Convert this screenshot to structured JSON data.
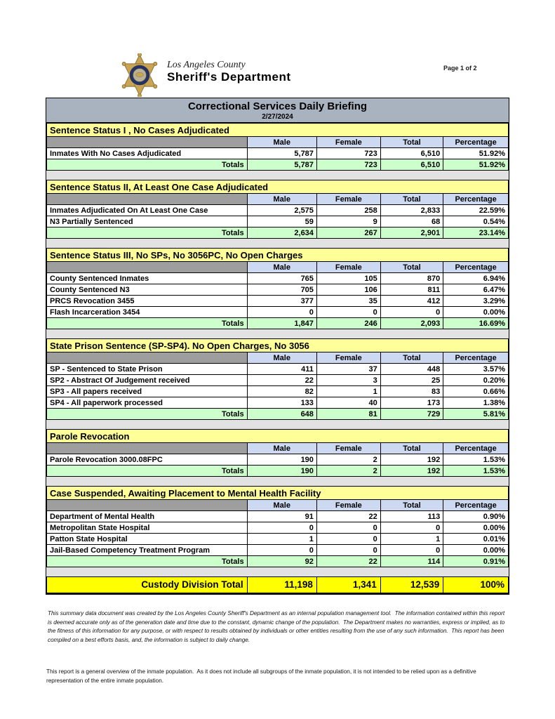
{
  "page": {
    "page_indicator": "Page 1 of 2"
  },
  "logo": {
    "county": "Los Angeles County",
    "department": "Sheriff's Department"
  },
  "report": {
    "title": "Correctional Services Daily Briefing",
    "date": "2/27/2024"
  },
  "columns": [
    "Male",
    "Female",
    "Total",
    "Percentage"
  ],
  "totals_label": "Totals",
  "sections": [
    {
      "title": "Sentence Status I , No Cases Adjudicated",
      "rows": [
        {
          "label": "Inmates With No Cases Adjudicated",
          "male": "5,787",
          "female": "723",
          "total": "6,510",
          "percentage": "51.92%"
        }
      ],
      "totals": {
        "male": "5,787",
        "female": "723",
        "total": "6,510",
        "percentage": "51.92%"
      }
    },
    {
      "title": "Sentence Status II, At Least One Case Adjudicated",
      "rows": [
        {
          "label": "Inmates Adjudicated On At Least One Case",
          "male": "2,575",
          "female": "258",
          "total": "2,833",
          "percentage": "22.59%"
        },
        {
          "label": "N3 Partially Sentenced",
          "male": "59",
          "female": "9",
          "total": "68",
          "percentage": "0.54%"
        }
      ],
      "totals": {
        "male": "2,634",
        "female": "267",
        "total": "2,901",
        "percentage": "23.14%"
      }
    },
    {
      "title": "Sentence Status III, No SPs, No 3056PC, No Open Charges",
      "rows": [
        {
          "label": "County Sentenced Inmates",
          "male": "765",
          "female": "105",
          "total": "870",
          "percentage": "6.94%"
        },
        {
          "label": "County Sentenced N3",
          "male": "705",
          "female": "106",
          "total": "811",
          "percentage": "6.47%"
        },
        {
          "label": "PRCS Revocation 3455",
          "male": "377",
          "female": "35",
          "total": "412",
          "percentage": "3.29%"
        },
        {
          "label": "Flash Incarceration 3454",
          "male": "0",
          "female": "0",
          "total": "0",
          "percentage": "0.00%"
        }
      ],
      "totals": {
        "male": "1,847",
        "female": "246",
        "total": "2,093",
        "percentage": "16.69%"
      }
    },
    {
      "title": "State Prison Sentence (SP-SP4). No Open Charges, No 3056",
      "rows": [
        {
          "label": "SP - Sentenced to State Prison",
          "male": "411",
          "female": "37",
          "total": "448",
          "percentage": "3.57%"
        },
        {
          "label": "SP2 - Abstract Of Judgement received",
          "male": "22",
          "female": "3",
          "total": "25",
          "percentage": "0.20%"
        },
        {
          "label": "SP3 - All papers received",
          "male": "82",
          "female": "1",
          "total": "83",
          "percentage": "0.66%"
        },
        {
          "label": "SP4 - All paperwork processed",
          "male": "133",
          "female": "40",
          "total": "173",
          "percentage": "1.38%"
        }
      ],
      "totals": {
        "male": "648",
        "female": "81",
        "total": "729",
        "percentage": "5.81%"
      }
    },
    {
      "title": "Parole Revocation",
      "rows": [
        {
          "label": "Parole Revocation 3000.08FPC",
          "male": "190",
          "female": "2",
          "total": "192",
          "percentage": "1.53%"
        }
      ],
      "totals": {
        "male": "190",
        "female": "2",
        "total": "192",
        "percentage": "1.53%"
      }
    },
    {
      "title": "Case Suspended, Awaiting Placement to Mental Health Facility",
      "rows": [
        {
          "label": "Department of Mental Health",
          "male": "91",
          "female": "22",
          "total": "113",
          "percentage": "0.90%"
        },
        {
          "label": "Metropolitan State Hospital",
          "male": "0",
          "female": "0",
          "total": "0",
          "percentage": "0.00%"
        },
        {
          "label": "Patton State Hospital",
          "male": "1",
          "female": "0",
          "total": "1",
          "percentage": "0.01%"
        },
        {
          "label": "Jail-Based Competency Treatment Program",
          "male": "0",
          "female": "0",
          "total": "0",
          "percentage": "0.00%"
        }
      ],
      "totals": {
        "male": "92",
        "female": "22",
        "total": "114",
        "percentage": "0.91%"
      }
    }
  ],
  "custody_total": {
    "label": "Custody Division Total",
    "male": "11,198",
    "female": "1,341",
    "total": "12,539",
    "percentage": "100%"
  },
  "disclaimer": "This summary data document was created by the Los Angeles County Sheriff's Department as an internal population management tool.  The information contained within this report is deemed accurate only as of the generation date and time due to the constant, dynamic change of the population.  The Department makes no warranties, express or implied, as to the fitness of this information for any purpose, or with respect to results obtained by individuals or other entities resulting from the use of any such information.  This report has been compiled on a best efforts basis, and, the information is subject to daily change.",
  "overview_note": "This report is a general overview of the inmate population.  As it does not include all subgroups of the inmate population, it is not intended to be relied upon as a definitive representation of the entire inmate population.",
  "colors": {
    "title_bar": "#a9b3c0",
    "section_header": "#ffff99",
    "column_header": "#ccd9f0",
    "corner_header": "#9e9e9e",
    "totals_row": "#ccffcc",
    "custody_total_row": "#ffff00",
    "spacer": "#e2e2e2",
    "badge_gold": "#c9a452",
    "badge_navy": "#243363"
  }
}
